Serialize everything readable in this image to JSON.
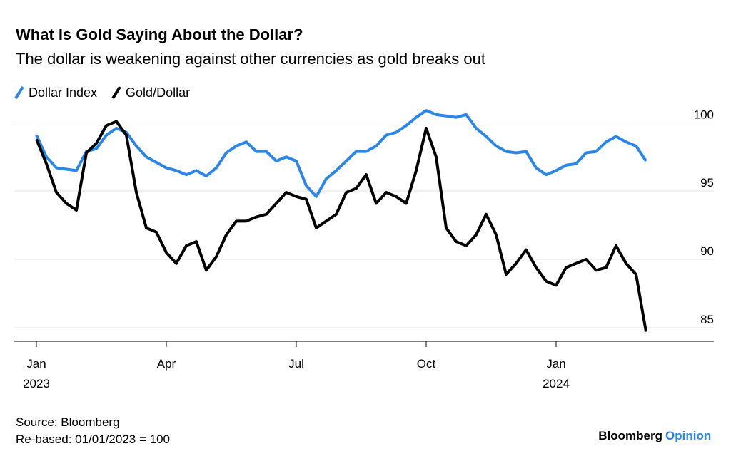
{
  "chart_data": {
    "type": "line",
    "title": "What Is Gold Saying About the Dollar?",
    "subtitle": "The dollar is weakening against other currencies as gold breaks out",
    "categories": [
      "Jan",
      null,
      null,
      null,
      null,
      null,
      null,
      null,
      null,
      null,
      null,
      null,
      null,
      "Apr",
      null,
      null,
      null,
      null,
      null,
      null,
      null,
      null,
      null,
      null,
      null,
      null,
      "Jul",
      null,
      null,
      null,
      null,
      null,
      null,
      null,
      null,
      null,
      null,
      null,
      null,
      "Oct",
      null,
      null,
      null,
      null,
      null,
      null,
      null,
      null,
      null,
      null,
      null,
      null,
      "Jan",
      null,
      null,
      null,
      null,
      null,
      null,
      null,
      null,
      null
    ],
    "category_years": [
      "2023",
      null,
      null,
      null,
      null,
      null,
      null,
      null,
      null,
      null,
      null,
      null,
      null,
      null,
      null,
      null,
      null,
      null,
      null,
      null,
      null,
      null,
      null,
      null,
      null,
      null,
      null,
      null,
      null,
      null,
      null,
      null,
      null,
      null,
      null,
      null,
      null,
      null,
      null,
      null,
      null,
      null,
      null,
      null,
      null,
      null,
      null,
      null,
      null,
      null,
      null,
      null,
      "2024",
      null,
      null,
      null,
      null,
      null,
      null,
      null,
      null,
      null
    ],
    "series": [
      {
        "name": "Dollar Index",
        "color": "#2a86e8",
        "values": [
          99.1,
          97.5,
          96.7,
          96.6,
          96.5,
          97.9,
          98.1,
          99.1,
          99.6,
          99.3,
          98.3,
          97.5,
          97.1,
          96.7,
          96.5,
          96.2,
          96.5,
          96.1,
          96.7,
          97.8,
          98.3,
          98.6,
          97.9,
          97.9,
          97.2,
          97.5,
          97.2,
          95.4,
          94.6,
          95.9,
          96.5,
          97.2,
          97.9,
          97.9,
          98.3,
          99.1,
          99.3,
          99.8,
          100.4,
          100.9,
          100.6,
          100.5,
          100.4,
          100.6,
          99.6,
          99.0,
          98.3,
          97.9,
          97.8,
          97.9,
          96.7,
          96.2,
          96.5,
          96.9,
          97.0,
          97.8,
          97.9,
          98.6,
          99.0,
          98.6,
          98.3,
          97.2
        ]
      },
      {
        "name": "Gold/Dollar",
        "color": "#000000",
        "values": [
          98.8,
          97.0,
          94.9,
          94.1,
          93.6,
          97.8,
          98.5,
          99.8,
          100.1,
          99.1,
          94.9,
          92.3,
          92.0,
          90.5,
          89.7,
          91.0,
          91.3,
          89.2,
          90.2,
          91.8,
          92.8,
          92.8,
          93.1,
          93.3,
          94.1,
          94.9,
          94.6,
          94.4,
          92.3,
          92.8,
          93.3,
          94.9,
          95.2,
          96.2,
          94.1,
          94.9,
          94.6,
          94.1,
          96.5,
          99.6,
          97.5,
          92.3,
          91.3,
          91.0,
          91.8,
          93.3,
          91.8,
          88.9,
          89.7,
          90.7,
          89.4,
          88.4,
          88.1,
          89.4,
          89.7,
          90.0,
          89.2,
          89.4,
          91.0,
          89.7,
          88.9,
          84.7
        ]
      }
    ],
    "ylim": [
      84,
      102
    ],
    "yticks": [
      85,
      90,
      95,
      100
    ],
    "grid": true,
    "source": "Source: Bloomberg",
    "note": "Re-based: 01/01/2023 = 100",
    "branding": [
      "Bloomberg",
      "Opinion"
    ]
  }
}
